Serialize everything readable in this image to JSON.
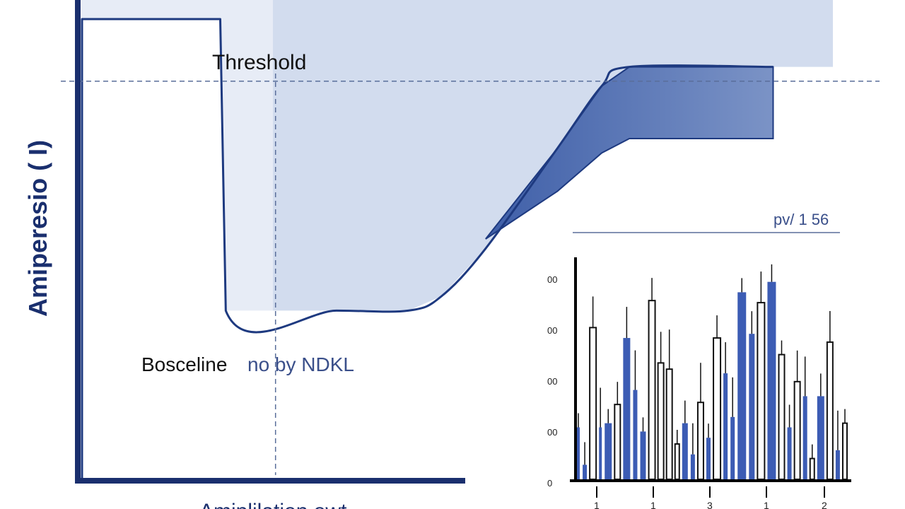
{
  "colors": {
    "axis": "#1a2f6e",
    "curve": "#1e3a80",
    "band": "#3f5fa8",
    "band_light": "#7b93c6",
    "panel_light": "#e7ecf6",
    "panel_mid": "#d2dcee",
    "dashed": "#5a6e9a",
    "bar_blue": "#3c5cb4",
    "bar_outline": "#111111"
  },
  "chart_data": [
    {
      "type": "line",
      "ylabel": "Amiperesio ( I)",
      "xlabel": "Amiplilation owt",
      "annotations": {
        "threshold": "Threshold",
        "baseline": "Bosceline",
        "baseline_suffix": "no by NDKL"
      },
      "xlim": [
        0,
        10
      ],
      "ylim": [
        0,
        10
      ],
      "series": [
        {
          "values_x": [
            0,
            0,
            2.5,
            2.6,
            4.6,
            5.9,
            6.5,
            7.3,
            8.6,
            9.4,
            9.9,
            12.5
          ],
          "values_y": [
            0,
            9.6,
            9.6,
            3.5,
            3.5,
            3.5,
            3.8,
            4.8,
            6.9,
            8.2,
            8.6,
            8.6
          ]
        }
      ],
      "band_upper": {
        "x": [
          7.3,
          8.6,
          9.4,
          9.9,
          12.5
        ],
        "y": [
          5.0,
          6.9,
          8.2,
          8.6,
          8.6
        ]
      },
      "band_lower": {
        "x": [
          7.3,
          8.6,
          9.4,
          9.9,
          12.5
        ],
        "y": [
          5.0,
          6.0,
          6.8,
          7.1,
          7.1
        ]
      },
      "threshold_y": 8.3,
      "vline_x": 3.5
    },
    {
      "type": "bar",
      "title": "pv/ 1 56",
      "yticks": [
        "00",
        "00",
        "00",
        "00",
        "0"
      ],
      "xticks": [
        "1",
        "1",
        "3",
        "1",
        "2"
      ],
      "ylim": [
        0,
        100
      ],
      "bars": [
        {
          "v": 25,
          "w": 4,
          "style": "blue"
        },
        {
          "v": 7,
          "w": 6,
          "style": "blue"
        },
        {
          "v": 73,
          "w": 9,
          "style": "outline"
        },
        {
          "v": 25,
          "w": 4,
          "style": "blue"
        },
        {
          "v": 27,
          "w": 10,
          "style": "blue"
        },
        {
          "v": 36,
          "w": 8,
          "style": "outline"
        },
        {
          "v": 68,
          "w": 10,
          "style": "blue"
        },
        {
          "v": 43,
          "w": 6,
          "style": "blue"
        },
        {
          "v": 23,
          "w": 8,
          "style": "blue"
        },
        {
          "v": 86,
          "w": 9,
          "style": "outline"
        },
        {
          "v": 56,
          "w": 8,
          "style": "outline"
        },
        {
          "v": 53,
          "w": 8,
          "style": "outline"
        },
        {
          "v": 17,
          "w": 6,
          "style": "outline"
        },
        {
          "v": 27,
          "w": 8,
          "style": "blue"
        },
        {
          "v": 12,
          "w": 6,
          "style": "blue"
        },
        {
          "v": 37,
          "w": 8,
          "style": "outline"
        },
        {
          "v": 20,
          "w": 6,
          "style": "blue"
        },
        {
          "v": 68,
          "w": 10,
          "style": "outline"
        },
        {
          "v": 51,
          "w": 6,
          "style": "blue"
        },
        {
          "v": 30,
          "w": 6,
          "style": "blue"
        },
        {
          "v": 90,
          "w": 12,
          "style": "blue"
        },
        {
          "v": 70,
          "w": 8,
          "style": "blue"
        },
        {
          "v": 85,
          "w": 10,
          "style": "outline"
        },
        {
          "v": 95,
          "w": 12,
          "style": "blue"
        },
        {
          "v": 60,
          "w": 8,
          "style": "outline"
        },
        {
          "v": 25,
          "w": 6,
          "style": "blue"
        },
        {
          "v": 47,
          "w": 8,
          "style": "outline"
        },
        {
          "v": 40,
          "w": 6,
          "style": "blue"
        },
        {
          "v": 10,
          "w": 6,
          "style": "outline"
        },
        {
          "v": 40,
          "w": 10,
          "style": "blue"
        },
        {
          "v": 66,
          "w": 8,
          "style": "outline"
        },
        {
          "v": 14,
          "w": 6,
          "style": "blue"
        },
        {
          "v": 27,
          "w": 6,
          "style": "outline"
        }
      ]
    }
  ]
}
